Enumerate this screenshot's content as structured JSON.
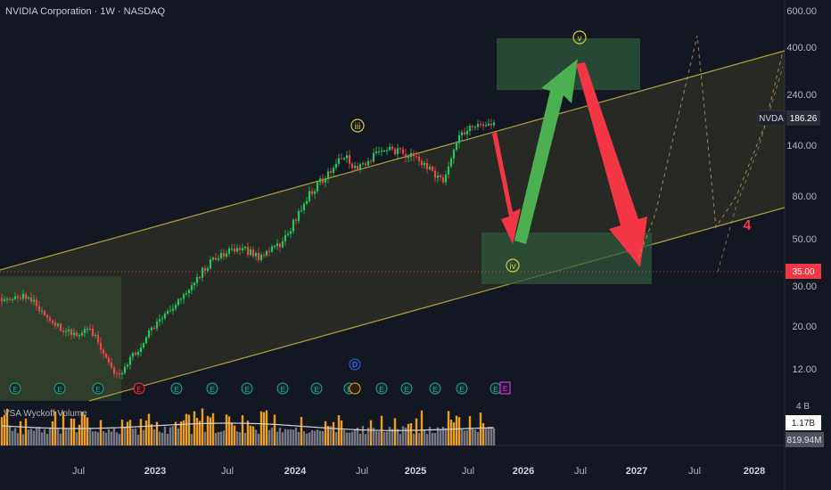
{
  "header": {
    "title": "NVIDIA Corporation · 1W · NASDAQ"
  },
  "price_axis": {
    "ticks": [
      "600.00",
      "400.00",
      "240.00",
      "140.00",
      "80.00",
      "50.00",
      "30.00",
      "20.00",
      "12.00",
      "4 B"
    ],
    "symbol_label": "NVDA",
    "last_price": "186.26",
    "target_price": "35.00"
  },
  "time_axis": {
    "ticks": [
      "Jul",
      "2023",
      "Jul",
      "2024",
      "Jul",
      "2025",
      "Jul",
      "2026",
      "Jul",
      "2027",
      "Jul",
      "2028"
    ]
  },
  "wave_labels": {
    "iii": "iii",
    "iv": "iv",
    "v": "v",
    "four": "4"
  },
  "markers": {
    "earnings": "E",
    "dividend": "D"
  },
  "volume_panel": {
    "indicator_name": "VSA Wyckoff Volume",
    "volume_label": "1.17B",
    "volume_avg_label": "819.94M"
  },
  "colors": {
    "background": "#131722",
    "up_candle": "#22c55e",
    "down_candle": "#ef4444",
    "channel": "#b5a642",
    "green_arrow": "#4caf50",
    "red_arrow": "#f23645",
    "volume_orange": "#f7a325",
    "volume_gray": "#9598a1",
    "wave_label": "#d6c73f"
  },
  "chart_data": {
    "type": "candlestick",
    "scale": "log",
    "y_ticks": [
      600,
      400,
      240,
      140,
      80,
      50,
      30,
      20,
      12
    ],
    "ylim": [
      8.5,
      650
    ],
    "x_ticks": [
      "Jul",
      "2023",
      "Jul",
      "2024",
      "Jul",
      "2025",
      "Jul",
      "2026",
      "Jul",
      "2027",
      "Jul",
      "2028"
    ],
    "price_path": [
      {
        "date": "2022-01",
        "price": 27
      },
      {
        "date": "2022-03",
        "price": 28
      },
      {
        "date": "2022-05",
        "price": 20
      },
      {
        "date": "2022-07",
        "price": 18
      },
      {
        "date": "2022-08",
        "price": 19
      },
      {
        "date": "2022-10",
        "price": 11.5
      },
      {
        "date": "2023-01",
        "price": 20
      },
      {
        "date": "2023-03",
        "price": 26
      },
      {
        "date": "2023-06",
        "price": 42
      },
      {
        "date": "2023-08",
        "price": 47
      },
      {
        "date": "2023-10",
        "price": 42
      },
      {
        "date": "2023-12",
        "price": 50
      },
      {
        "date": "2024-02",
        "price": 79
      },
      {
        "date": "2024-03",
        "price": 90
      },
      {
        "date": "2024-06",
        "price": 130
      },
      {
        "date": "2024-07",
        "price": 110
      },
      {
        "date": "2024-10",
        "price": 139
      },
      {
        "date": "2025-01",
        "price": 125
      },
      {
        "date": "2025-04",
        "price": 95
      },
      {
        "date": "2025-06",
        "price": 158
      },
      {
        "date": "2025-08",
        "price": 182
      },
      {
        "date": "2025-10",
        "price": 186.26
      }
    ],
    "projection": [
      {
        "wave": "iv",
        "date": "2025-12",
        "price": 45
      },
      {
        "wave": "v",
        "date": "2026-07",
        "price": 400
      },
      {
        "date": "2027-01",
        "price": 35
      }
    ],
    "zones": [
      {
        "name": "wave-v-target",
        "date_from": "2026-01",
        "date_to": "2026-12",
        "price_from": 240,
        "price_to": 430
      },
      {
        "name": "wave-iv-support",
        "date_from": "2025-10",
        "date_to": "2027-01",
        "price_from": 32,
        "price_to": 53
      }
    ]
  }
}
